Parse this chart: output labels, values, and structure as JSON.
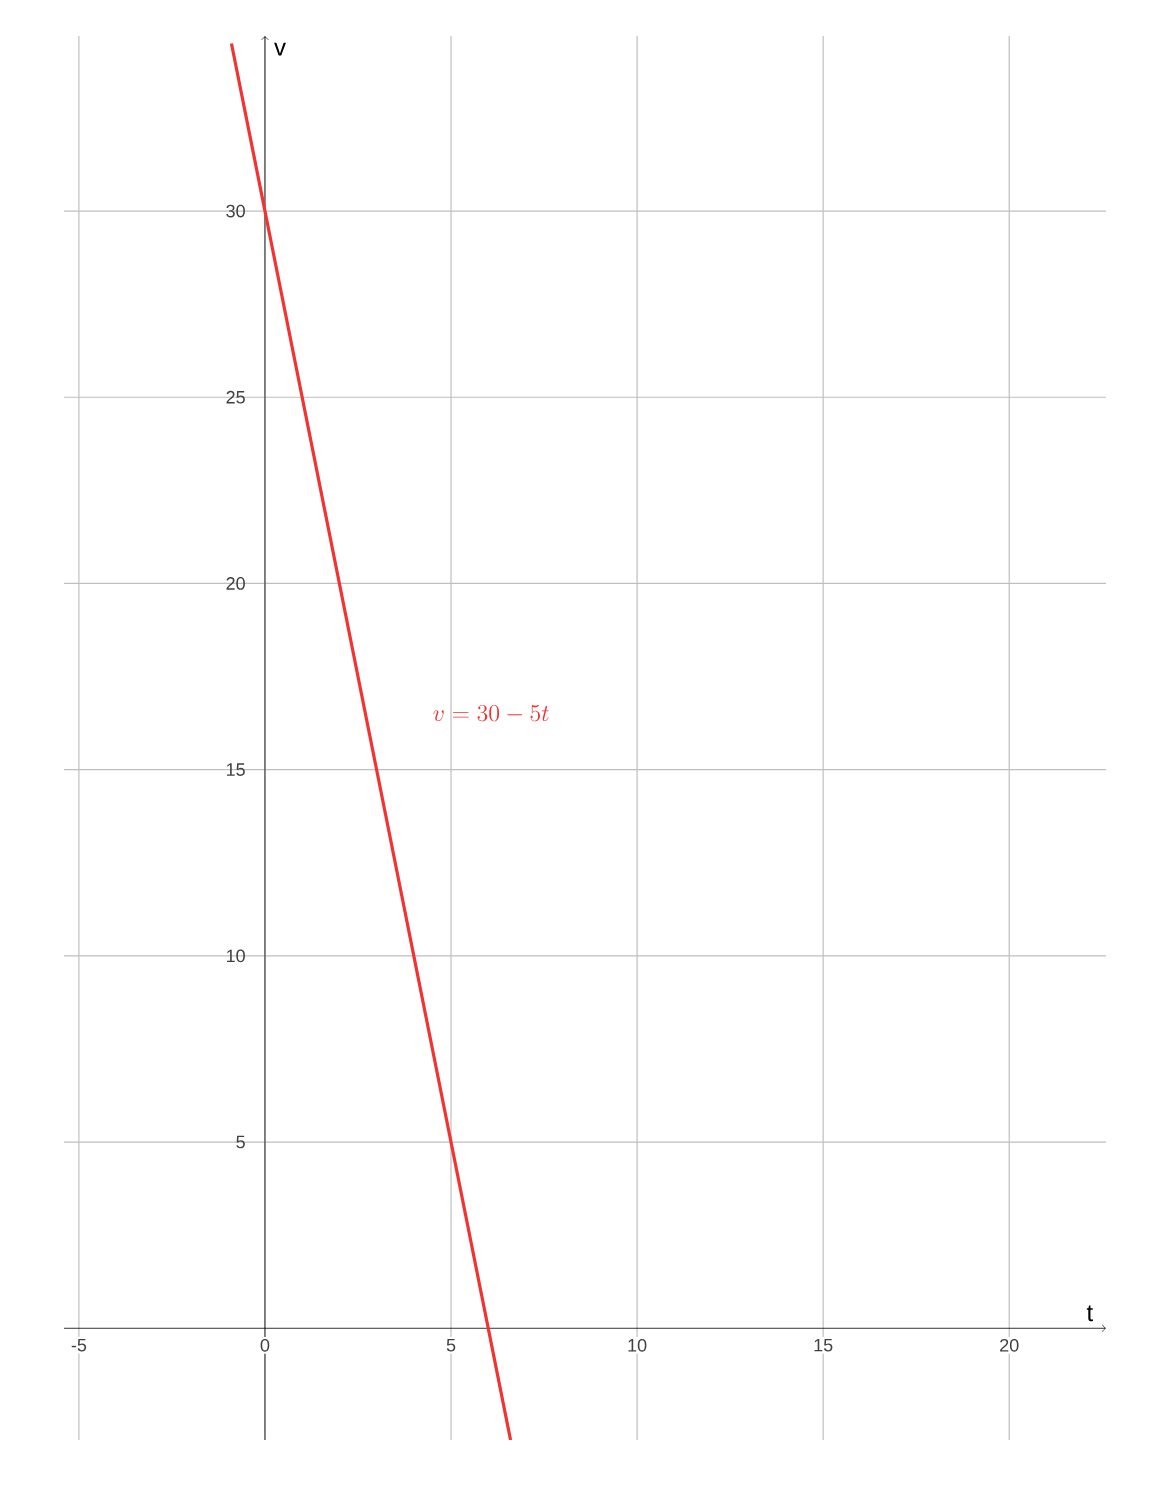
{
  "chart_data": {
    "type": "line",
    "xlabel": "t",
    "ylabel": "v",
    "xlim": [
      -5.4,
      22.6
    ],
    "ylim": [
      -3.0,
      34.7
    ],
    "xticks": [
      -5,
      0,
      5,
      10,
      15,
      20
    ],
    "yticks": [
      5,
      10,
      15,
      20,
      25,
      30
    ],
    "grid": true,
    "marker": "none",
    "line_style": "solid",
    "series": [
      {
        "color": "#f03333",
        "x": [
          -0.9,
          6.6
        ],
        "values": [
          34.5,
          -3.0
        ]
      }
    ],
    "annotations": [
      "v=30-5t"
    ]
  }
}
